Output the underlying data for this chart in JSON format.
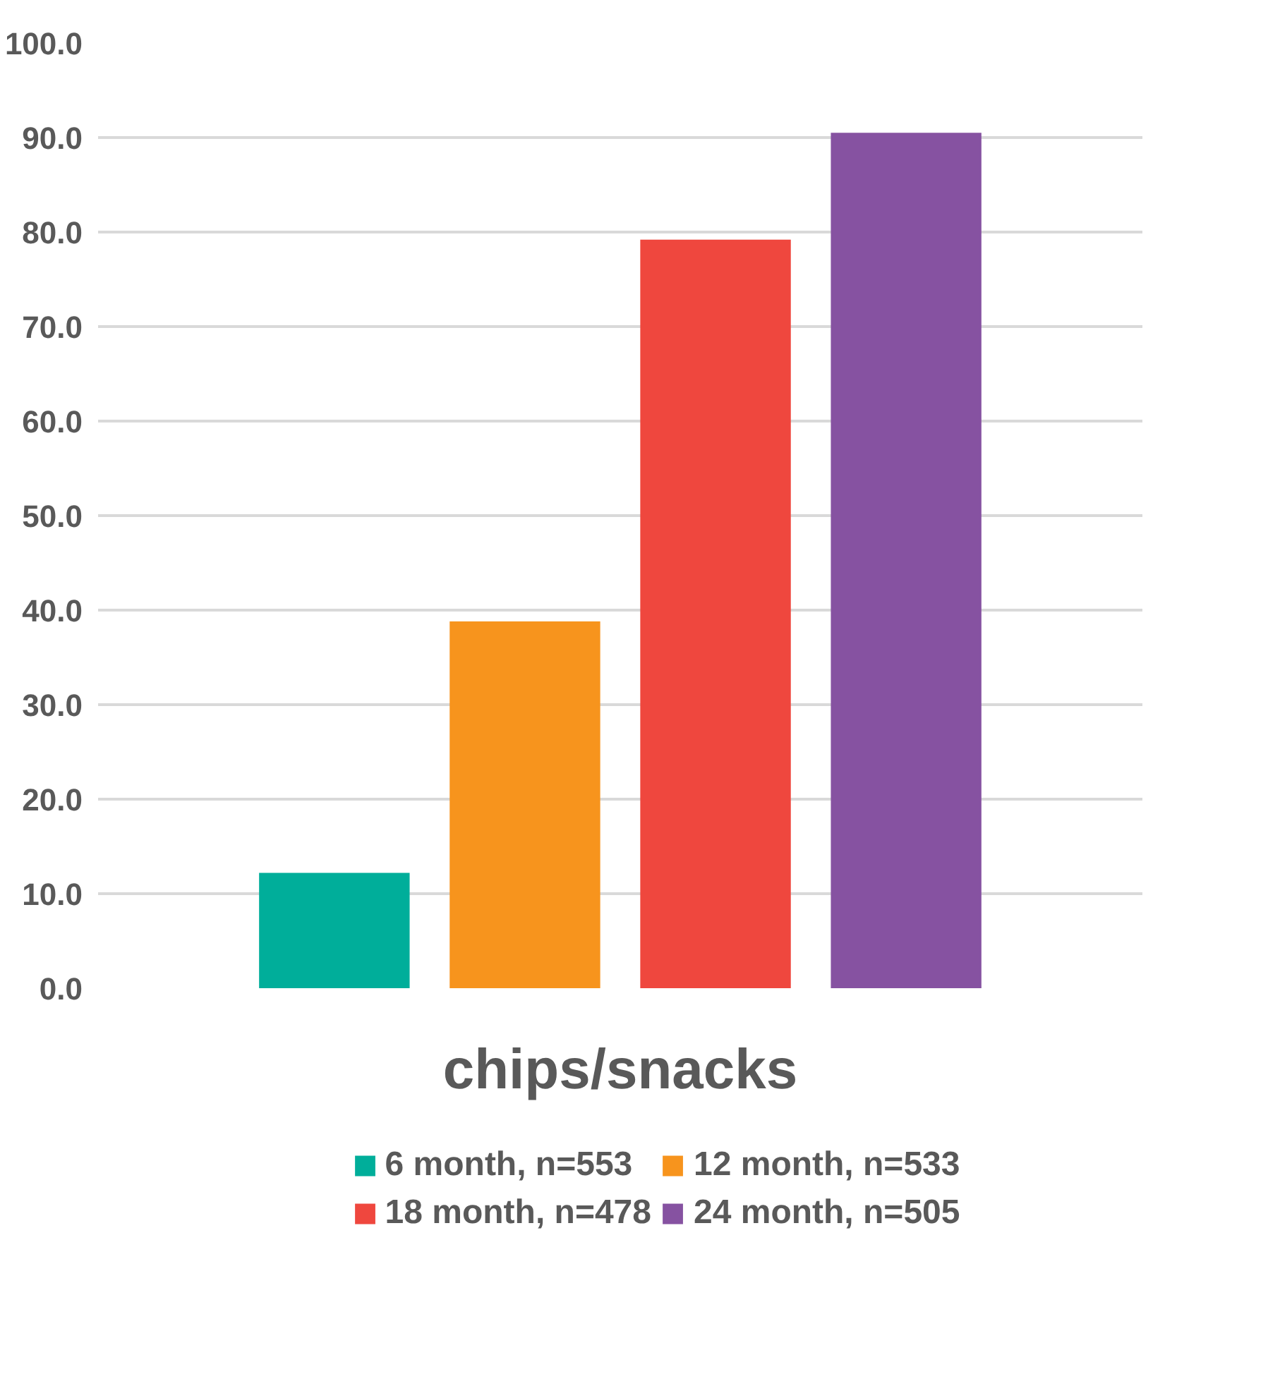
{
  "chart_data": {
    "type": "bar",
    "categories": [
      "chips/snacks"
    ],
    "series": [
      {
        "name": "6 month, n=553",
        "color": "#00ae9a",
        "values": [
          12.2
        ]
      },
      {
        "name": "12 month, n=533",
        "color": "#f7941d",
        "values": [
          38.8
        ]
      },
      {
        "name": "18 month, n=478",
        "color": "#ef473e",
        "values": [
          79.2
        ]
      },
      {
        "name": "24 month, n=505",
        "color": "#8652a1",
        "values": [
          90.5
        ]
      }
    ],
    "ylim": [
      0,
      100
    ],
    "yticks": [
      {
        "value": 0,
        "label": "0.0"
      },
      {
        "value": 10,
        "label": "10.0"
      },
      {
        "value": 20,
        "label": "20.0"
      },
      {
        "value": 30,
        "label": "30.0"
      },
      {
        "value": 40,
        "label": "40.0"
      },
      {
        "value": 50,
        "label": "50.0"
      },
      {
        "value": 60,
        "label": "60.0"
      },
      {
        "value": 70,
        "label": "70.0"
      },
      {
        "value": 80,
        "label": "80.0"
      },
      {
        "value": 90,
        "label": "90.0"
      },
      {
        "value": 100,
        "label": "100.0"
      }
    ],
    "grid": "y",
    "legend": "bottom"
  }
}
